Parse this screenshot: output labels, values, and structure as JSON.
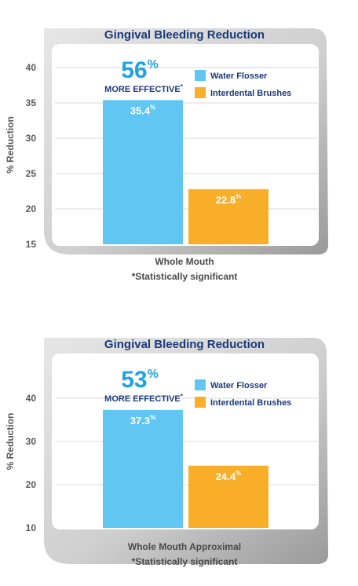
{
  "colors": {
    "water_flosser": "#62c6f2",
    "interdental_brushes": "#f9ae2a",
    "title_text": "#1a3a7a",
    "highlight": "#1ea3e0"
  },
  "chart_data": [
    {
      "type": "bar",
      "title": "Gingival Bleeding Reduction",
      "ylabel": "% Reduction",
      "ylim": [
        15,
        45
      ],
      "yticks": [
        "15",
        "20",
        "25",
        "30",
        "35",
        "40"
      ],
      "ytick_values": [
        15,
        20,
        25,
        30,
        35,
        40
      ],
      "grid": true,
      "legend_position": "top-right",
      "series": [
        {
          "name": "Water Flosser",
          "value": 35.4,
          "label": "35.4",
          "label_sup": "%",
          "color_key": "water_flosser"
        },
        {
          "name": "Interdental Brushes",
          "value": 22.8,
          "label": "22.8",
          "label_sup": "%",
          "color_key": "interdental_brushes"
        }
      ],
      "callout": {
        "value": "56",
        "sup": "%",
        "text": "MORE EFFECTIVE",
        "text_sup": "*"
      },
      "xlabel": "Whole Mouth",
      "footnote": "*Statistically significant"
    },
    {
      "type": "bar",
      "title": "Gingival Bleeding Reduction",
      "ylabel": "% Reduction",
      "ylim": [
        10,
        50
      ],
      "yticks": [
        "10",
        "20",
        "30",
        "40"
      ],
      "ytick_values": [
        10,
        20,
        30,
        40
      ],
      "grid": true,
      "legend_position": "top-right",
      "series": [
        {
          "name": "Water Flosser",
          "value": 37.3,
          "label": "37.3",
          "label_sup": "%",
          "color_key": "water_flosser"
        },
        {
          "name": "Interdental Brushes",
          "value": 24.4,
          "label": "24.4",
          "label_sup": "%",
          "color_key": "interdental_brushes"
        }
      ],
      "callout": {
        "value": "53",
        "sup": "%",
        "text": "MORE EFFECTIVE",
        "text_sup": "*"
      },
      "xlabel": "Whole Mouth Approximal",
      "footnote": "*Statistically significant"
    }
  ]
}
